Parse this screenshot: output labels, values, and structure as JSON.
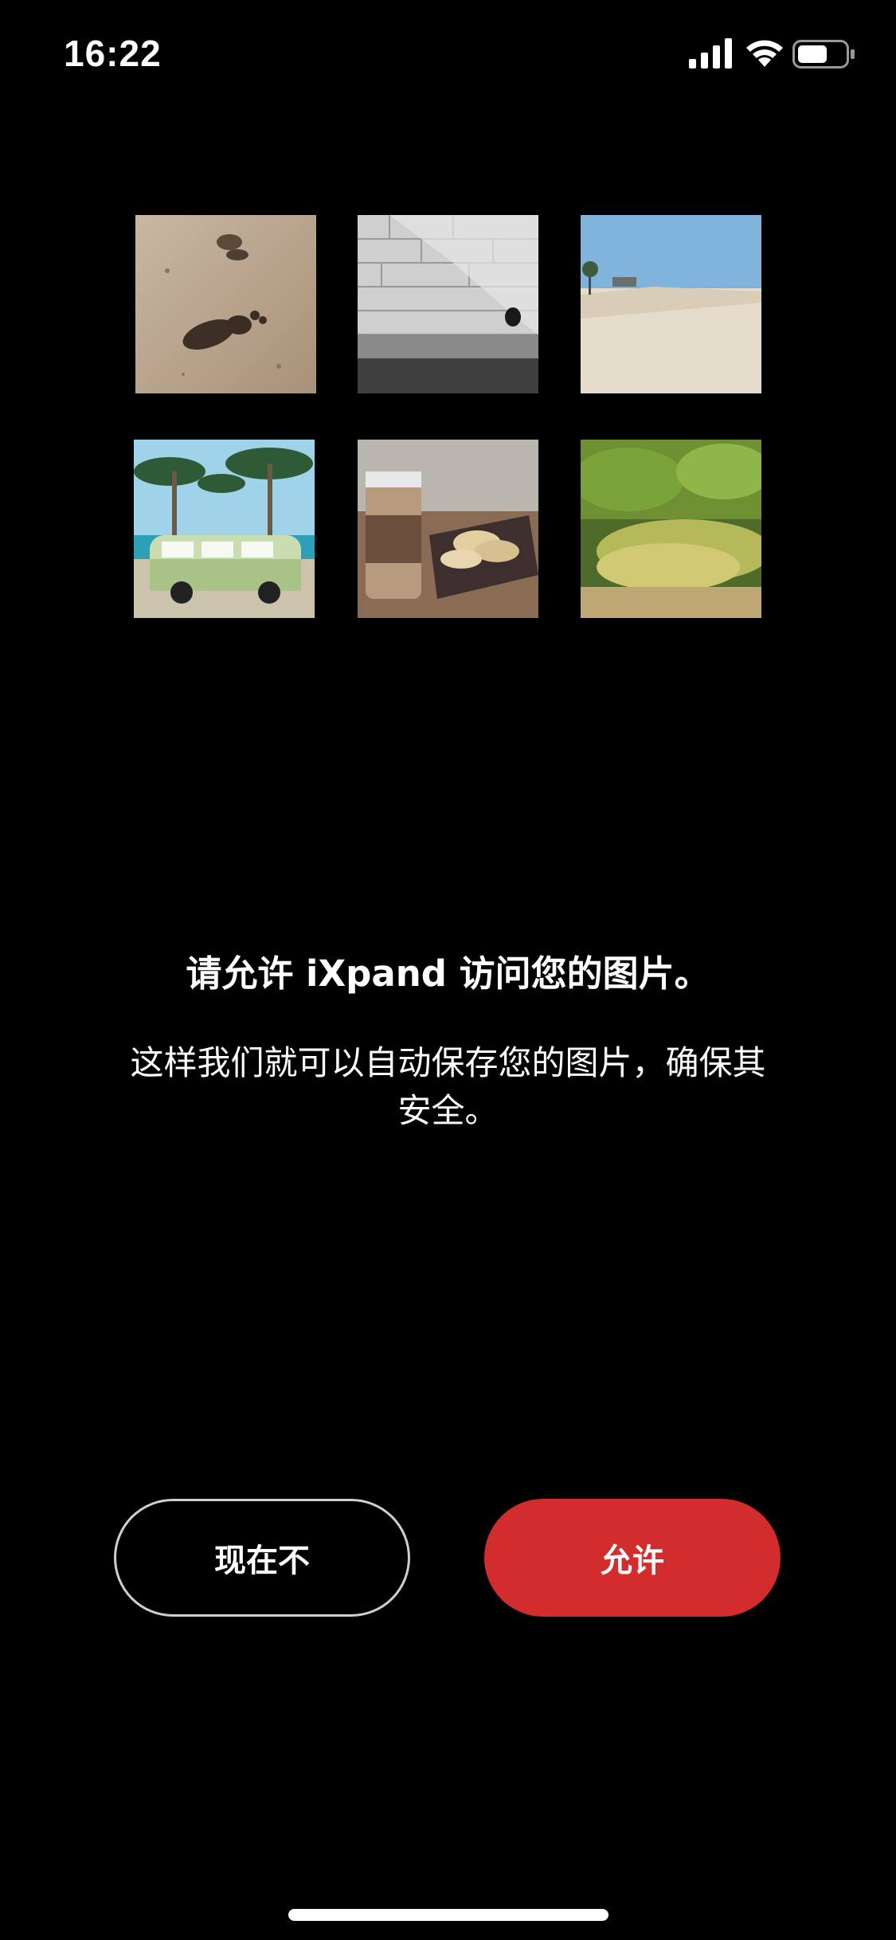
{
  "status_bar": {
    "time": "16:22",
    "icons": [
      "cellular-signal-icon",
      "wifi-icon",
      "battery-icon"
    ]
  },
  "photos": [
    {
      "subject": "footprints-in-sand"
    },
    {
      "subject": "stone-stairs-wall"
    },
    {
      "subject": "beach-shoreline"
    },
    {
      "subject": "van-under-palm-trees"
    },
    {
      "subject": "coffee-cup-and-cookies"
    },
    {
      "subject": "mossy-forest-ground"
    }
  ],
  "prompt": {
    "title": "请允许 iXpand 访问您的图片。",
    "description": "这样我们就可以自动保存您的图片，确保其安全。"
  },
  "buttons": {
    "not_now": "现在不",
    "allow": "允许"
  },
  "colors": {
    "background": "#000000",
    "allow_button": "#d32c2c",
    "outline": "#cfcfcf"
  }
}
